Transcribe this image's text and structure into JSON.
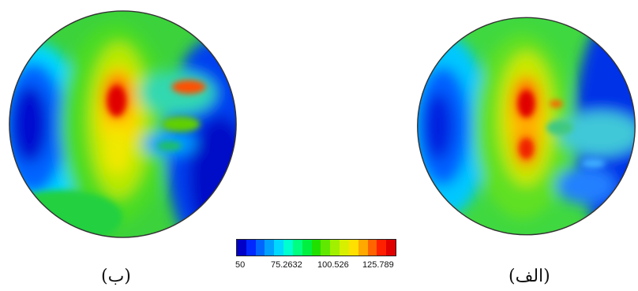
{
  "panels": [
    {
      "id": "b",
      "caption": "(ب)"
    },
    {
      "id": "a",
      "caption": "(الف)"
    }
  ],
  "colorbar": {
    "ticks": [
      "50",
      "75.2632",
      "100.526",
      "125.789"
    ],
    "colors": [
      "#0000c8",
      "#0028ff",
      "#0064ff",
      "#00a0ff",
      "#00d8ff",
      "#00ffd0",
      "#00ff80",
      "#00f040",
      "#20e000",
      "#60e800",
      "#a0f000",
      "#d8f000",
      "#ffe000",
      "#ffa800",
      "#ff6400",
      "#ff2000",
      "#e00000"
    ]
  }
}
